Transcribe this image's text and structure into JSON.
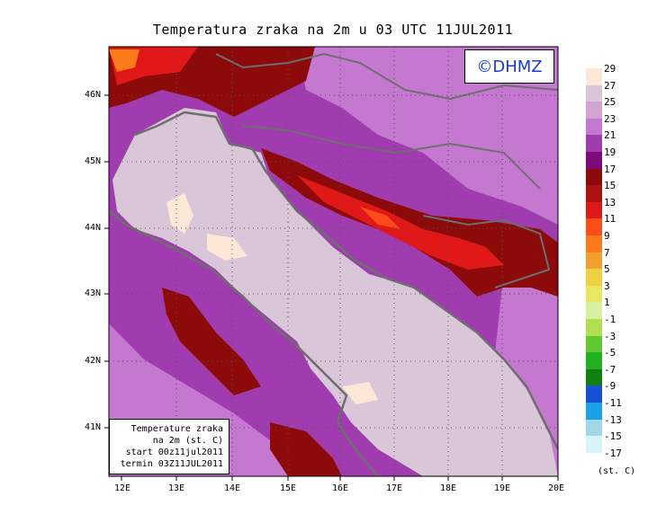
{
  "title": "Temperatura zraka na 2m u 03 UTC 11JUL2011",
  "copyright": "©DHMZ",
  "info_box": {
    "line1": "Temperature zraka",
    "line2": "na 2m (st. C)",
    "line3": "start 00z11jul2011",
    "line4": "termin 03Z11JUL2011"
  },
  "lon_labels": [
    "12E",
    "13E",
    "14E",
    "15E",
    "16E",
    "17E",
    "18E",
    "19E",
    "20E"
  ],
  "lat_labels": [
    "46N",
    "45N",
    "44N",
    "43N",
    "42N",
    "41N"
  ],
  "colorbar": {
    "labels": [
      "29",
      "27",
      "25",
      "23",
      "21",
      "19",
      "17",
      "15",
      "13",
      "11",
      "9",
      "7",
      "5",
      "3",
      "1",
      "-1",
      "-3",
      "-5",
      "-7",
      "-9",
      "-11",
      "-13",
      "-15",
      "-17"
    ],
    "colors": [
      "#fde8d8",
      "#d9c6d9",
      "#d3a4d3",
      "#c478cf",
      "#a03cb0",
      "#7d0a78",
      "#8c0a0a",
      "#b01010",
      "#e01818",
      "#ff4a1a",
      "#ff7a1a",
      "#f0a030",
      "#f0d040",
      "#e8e860",
      "#d8f0a0",
      "#b0e050",
      "#60c830",
      "#20b020",
      "#108010",
      "#1850d8",
      "#18a0e8",
      "#a0d8e8",
      "#d8f4f8"
    ],
    "units": "(st. C)"
  },
  "map_legend_colors": {
    "land_bg": "#a03cb0",
    "sea": "#d9c6d9",
    "sea_warm": "#fde8d8",
    "coastline": "#6e6e6e"
  }
}
